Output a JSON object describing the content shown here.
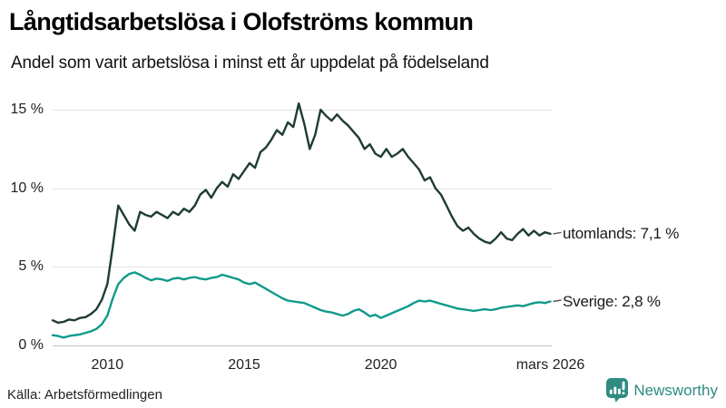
{
  "header": {
    "title": "Långtidsarbetslösa i Olofströms kommun",
    "subtitle": "Andel som varit arbetslösa i minst ett år uppdelat på födelseland"
  },
  "footer": {
    "source": "Källa: Arbetsförmedlingen",
    "brand": "Newsworthy"
  },
  "colors": {
    "foreign_line": "#1e3c34",
    "sweden_line": "#0f9a8a",
    "brand_teal": "#2e8b80",
    "grid": "#e2e2e2",
    "axis": "#c2c2c2",
    "connector": "#5a5a5a"
  },
  "chart_data": {
    "type": "line",
    "title": "Långtidsarbetslösa i Olofströms kommun",
    "subtitle": "Andel som varit arbetslösa i minst ett år uppdelat på födelseland",
    "xlabel": "",
    "ylabel": "",
    "unit": "%",
    "grid": "horizontal",
    "legend_position": "right-end-labels",
    "xlim": [
      2008.0,
      2026.25
    ],
    "ylim": [
      0,
      16.2
    ],
    "yticks": [
      {
        "v": 0,
        "label": "0 %",
        "axis": true
      },
      {
        "v": 5,
        "label": "5 %",
        "axis": false
      },
      {
        "v": 10,
        "label": "10 %",
        "axis": false
      },
      {
        "v": 15,
        "label": "15 %",
        "axis": false
      }
    ],
    "xticks": [
      {
        "year": 2010,
        "label": "2010"
      },
      {
        "year": 2015,
        "label": "2015"
      },
      {
        "year": 2020,
        "label": "2020"
      },
      {
        "year": 2026.2,
        "label": "mars 2026"
      }
    ],
    "x": [
      2008,
      2008.2,
      2008.4,
      2008.6,
      2008.8,
      2009,
      2009.2,
      2009.4,
      2009.6,
      2009.8,
      2010,
      2010.2,
      2010.4,
      2010.6,
      2010.8,
      2011,
      2011.2,
      2011.4,
      2011.6,
      2011.8,
      2012,
      2012.2,
      2012.4,
      2012.6,
      2012.8,
      2013,
      2013.2,
      2013.4,
      2013.6,
      2013.8,
      2014,
      2014.2,
      2014.4,
      2014.6,
      2014.8,
      2015,
      2015.2,
      2015.4,
      2015.6,
      2015.8,
      2016,
      2016.2,
      2016.4,
      2016.6,
      2016.8,
      2017,
      2017.2,
      2017.4,
      2017.6,
      2017.8,
      2018,
      2018.2,
      2018.4,
      2018.6,
      2018.8,
      2019,
      2019.2,
      2019.4,
      2019.6,
      2019.8,
      2020,
      2020.2,
      2020.4,
      2020.6,
      2020.8,
      2021,
      2021.2,
      2021.4,
      2021.6,
      2021.8,
      2022,
      2022.2,
      2022.4,
      2022.6,
      2022.8,
      2023,
      2023.2,
      2023.4,
      2023.6,
      2023.8,
      2024,
      2024.2,
      2024.4,
      2024.6,
      2024.8,
      2025,
      2025.2,
      2025.4,
      2025.6,
      2025.8,
      2026,
      2026.2
    ],
    "series": [
      {
        "name": "utomlands",
        "end_label": "utomlands: 7,1 %",
        "last_value": 7.1,
        "color_key": "foreign_line",
        "values": [
          1.6,
          1.45,
          1.5,
          1.65,
          1.6,
          1.75,
          1.8,
          2.0,
          2.3,
          2.9,
          3.9,
          6.3,
          8.9,
          8.3,
          7.7,
          7.3,
          8.5,
          8.3,
          8.2,
          8.5,
          8.3,
          8.1,
          8.5,
          8.3,
          8.7,
          8.5,
          8.9,
          9.6,
          9.9,
          9.4,
          10.0,
          10.4,
          10.1,
          10.9,
          10.6,
          11.1,
          11.6,
          11.3,
          12.3,
          12.6,
          13.1,
          13.7,
          13.4,
          14.2,
          13.9,
          15.4,
          14.1,
          12.5,
          13.4,
          15.0,
          14.6,
          14.3,
          14.7,
          14.3,
          14.0,
          13.6,
          13.2,
          12.5,
          12.8,
          12.2,
          12.0,
          12.5,
          12.0,
          12.2,
          12.5,
          12.0,
          11.6,
          11.2,
          10.5,
          10.7,
          10.0,
          9.6,
          8.9,
          8.2,
          7.6,
          7.3,
          7.5,
          7.1,
          6.8,
          6.6,
          6.5,
          6.8,
          7.2,
          6.8,
          6.7,
          7.1,
          7.4,
          7.0,
          7.3,
          7.0,
          7.2,
          7.1
        ]
      },
      {
        "name": "Sverige",
        "end_label": "Sverige: 2,8 %",
        "last_value": 2.8,
        "color_key": "sweden_line",
        "values": [
          0.65,
          0.6,
          0.5,
          0.6,
          0.65,
          0.7,
          0.8,
          0.9,
          1.05,
          1.35,
          1.9,
          3.0,
          3.9,
          4.3,
          4.55,
          4.65,
          4.5,
          4.3,
          4.15,
          4.25,
          4.2,
          4.1,
          4.25,
          4.3,
          4.2,
          4.3,
          4.35,
          4.25,
          4.2,
          4.3,
          4.35,
          4.5,
          4.4,
          4.3,
          4.2,
          4.0,
          3.9,
          4.0,
          3.8,
          3.6,
          3.4,
          3.2,
          3.0,
          2.85,
          2.8,
          2.75,
          2.7,
          2.55,
          2.4,
          2.25,
          2.15,
          2.1,
          2.0,
          1.9,
          2.0,
          2.2,
          2.3,
          2.1,
          1.85,
          1.95,
          1.75,
          1.9,
          2.05,
          2.2,
          2.35,
          2.5,
          2.7,
          2.85,
          2.8,
          2.85,
          2.75,
          2.65,
          2.55,
          2.45,
          2.35,
          2.3,
          2.25,
          2.2,
          2.25,
          2.3,
          2.25,
          2.3,
          2.4,
          2.45,
          2.5,
          2.55,
          2.5,
          2.6,
          2.7,
          2.75,
          2.7,
          2.8
        ]
      }
    ]
  }
}
